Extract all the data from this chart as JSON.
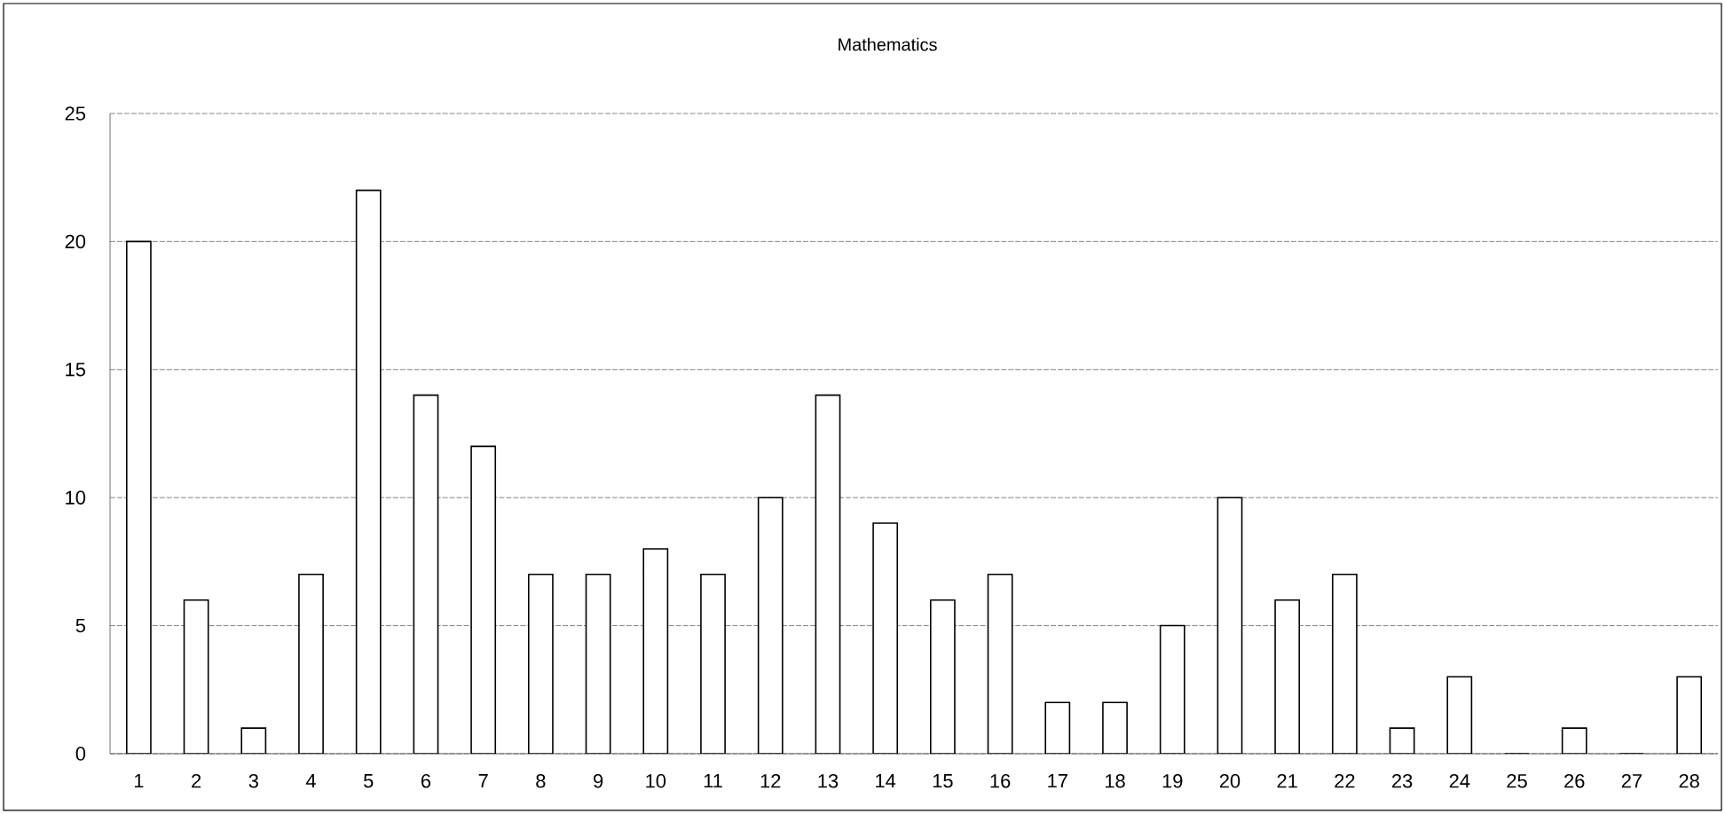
{
  "chart_data": {
    "type": "bar",
    "title": "Mathematics",
    "categories": [
      "1",
      "2",
      "3",
      "4",
      "5",
      "6",
      "7",
      "8",
      "9",
      "10",
      "11",
      "12",
      "13",
      "14",
      "15",
      "16",
      "17",
      "18",
      "19",
      "20",
      "21",
      "22",
      "23",
      "24",
      "25",
      "26",
      "27",
      "28"
    ],
    "values": [
      20,
      6,
      1,
      7,
      22,
      14,
      12,
      7,
      7,
      8,
      7,
      10,
      14,
      9,
      6,
      7,
      2,
      2,
      5,
      10,
      6,
      7,
      1,
      3,
      0,
      1,
      0,
      3
    ],
    "color": "#ffffff",
    "ylim": [
      0,
      25
    ],
    "yticks": [
      0,
      5,
      10,
      15,
      20,
      25
    ],
    "grid": "y"
  }
}
